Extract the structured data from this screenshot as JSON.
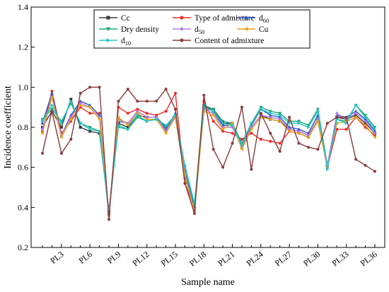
{
  "chart_data": {
    "type": "line",
    "xlabel": "Sample name",
    "ylabel": "Incidence coefficient",
    "ylim": [
      0.2,
      1.4
    ],
    "yticks": [
      0.2,
      0.4,
      0.6,
      0.8,
      1.0,
      1.2,
      1.4
    ],
    "ytick_labels": [
      "0.2",
      "0.4",
      "0.6",
      "0.8",
      "1.0",
      "1.2",
      "1.4"
    ],
    "grid": false,
    "legend_position": "top-right",
    "x": [
      "PL1",
      "PL2",
      "PL3",
      "PL4",
      "PL5",
      "PL6",
      "PL7",
      "PL8",
      "PL9",
      "PL10",
      "PL11",
      "PL12",
      "PL13",
      "PL14",
      "PL15",
      "PL16",
      "PL17",
      "PL18",
      "PL19",
      "PL20",
      "PL21",
      "PL22",
      "PL23",
      "PL24",
      "PL25",
      "PL26",
      "PL27",
      "PL28",
      "PL29",
      "PL30",
      "PL31",
      "PL32",
      "PL33",
      "PL34",
      "PL35",
      "PL36"
    ],
    "xtick_labels": [
      "PL3",
      "PL6",
      "PL9",
      "PL12",
      "PL15",
      "PL18",
      "PL21",
      "PL24",
      "PL27",
      "PL30",
      "PL33",
      "PL36"
    ],
    "series": [
      {
        "name": "Cc",
        "sub": "",
        "color": "#3a3a3a",
        "marker": "square",
        "values": [
          0.8,
          0.88,
          0.8,
          0.94,
          0.8,
          0.78,
          0.77,
          0.38,
          0.82,
          0.8,
          0.86,
          0.85,
          0.85,
          0.8,
          0.85,
          0.55,
          0.4,
          0.9,
          0.89,
          0.82,
          0.82,
          0.7,
          0.8,
          0.86,
          0.84,
          0.83,
          0.79,
          0.78,
          0.76,
          0.84,
          0.61,
          0.85,
          0.84,
          0.86,
          0.82,
          0.77
        ]
      },
      {
        "name": "Type of admixture",
        "sub": "",
        "color": "#ee2b2b",
        "marker": "circle",
        "values": [
          0.78,
          0.98,
          0.77,
          0.83,
          0.9,
          0.87,
          0.87,
          0.36,
          0.9,
          0.87,
          0.89,
          0.87,
          0.86,
          0.88,
          0.97,
          0.52,
          0.4,
          0.93,
          0.83,
          0.78,
          0.77,
          0.74,
          0.77,
          0.74,
          0.73,
          0.72,
          0.78,
          0.77,
          0.75,
          0.83,
          0.6,
          0.79,
          0.79,
          0.85,
          0.8,
          0.76
        ]
      },
      {
        "name": "d",
        "sub": "60",
        "color": "#2e55c7",
        "marker": "triangle-up",
        "values": [
          0.82,
          0.97,
          0.76,
          0.86,
          0.93,
          0.91,
          0.86,
          0.37,
          0.83,
          0.82,
          0.88,
          0.85,
          0.85,
          0.79,
          0.87,
          0.58,
          0.39,
          0.9,
          0.88,
          0.81,
          0.81,
          0.71,
          0.81,
          0.89,
          0.86,
          0.85,
          0.8,
          0.79,
          0.77,
          0.86,
          0.61,
          0.86,
          0.85,
          0.88,
          0.84,
          0.78
        ]
      },
      {
        "name": "Dry density",
        "sub": "",
        "color": "#1fa67a",
        "marker": "triangle-down",
        "values": [
          0.84,
          0.89,
          0.83,
          0.92,
          0.82,
          0.8,
          0.78,
          0.38,
          0.8,
          0.79,
          0.85,
          0.83,
          0.84,
          0.8,
          0.86,
          0.6,
          0.41,
          0.91,
          0.89,
          0.83,
          0.82,
          0.72,
          0.82,
          0.9,
          0.88,
          0.87,
          0.83,
          0.83,
          0.81,
          0.89,
          0.61,
          0.84,
          0.83,
          0.91,
          0.86,
          0.8
        ]
      },
      {
        "name": "d",
        "sub": "50",
        "color": "#b57ee6",
        "marker": "diamond",
        "values": [
          0.79,
          0.95,
          0.76,
          0.85,
          0.92,
          0.9,
          0.85,
          0.37,
          0.84,
          0.82,
          0.88,
          0.85,
          0.85,
          0.78,
          0.86,
          0.57,
          0.38,
          0.89,
          0.87,
          0.8,
          0.8,
          0.7,
          0.8,
          0.86,
          0.85,
          0.84,
          0.79,
          0.78,
          0.76,
          0.84,
          0.61,
          0.87,
          0.84,
          0.87,
          0.83,
          0.77
        ]
      },
      {
        "name": "Cu",
        "sub": "",
        "color": "#e6a417",
        "marker": "left-triangle",
        "values": [
          0.77,
          0.95,
          0.75,
          0.84,
          0.91,
          0.9,
          0.84,
          0.36,
          0.85,
          0.81,
          0.87,
          0.84,
          0.84,
          0.77,
          0.85,
          0.56,
          0.38,
          0.88,
          0.86,
          0.79,
          0.82,
          0.69,
          0.79,
          0.85,
          0.84,
          0.83,
          0.78,
          0.77,
          0.75,
          0.83,
          0.6,
          0.82,
          0.83,
          0.85,
          0.81,
          0.75
        ]
      },
      {
        "name": "d",
        "sub": "10",
        "color": "#22c4c4",
        "marker": "right-triangle",
        "values": [
          0.83,
          0.91,
          0.82,
          0.93,
          0.82,
          0.79,
          0.78,
          0.37,
          0.81,
          0.79,
          0.86,
          0.83,
          0.84,
          0.81,
          0.86,
          0.61,
          0.42,
          0.9,
          0.88,
          0.82,
          0.81,
          0.71,
          0.82,
          0.89,
          0.87,
          0.86,
          0.82,
          0.82,
          0.8,
          0.88,
          0.59,
          0.84,
          0.82,
          0.91,
          0.85,
          0.79
        ]
      },
      {
        "name": "Content of admixture",
        "sub": "",
        "color": "#8b3a3a",
        "marker": "circle",
        "values": [
          0.67,
          0.88,
          0.67,
          0.74,
          0.97,
          1.0,
          1.0,
          0.34,
          0.93,
          0.99,
          0.93,
          0.93,
          0.93,
          0.99,
          0.89,
          0.52,
          0.37,
          0.96,
          0.69,
          0.6,
          0.72,
          0.9,
          0.59,
          0.87,
          0.77,
          0.68,
          0.85,
          0.72,
          0.7,
          0.69,
          0.82,
          0.85,
          0.85,
          0.64,
          0.61,
          0.58
        ]
      }
    ]
  }
}
